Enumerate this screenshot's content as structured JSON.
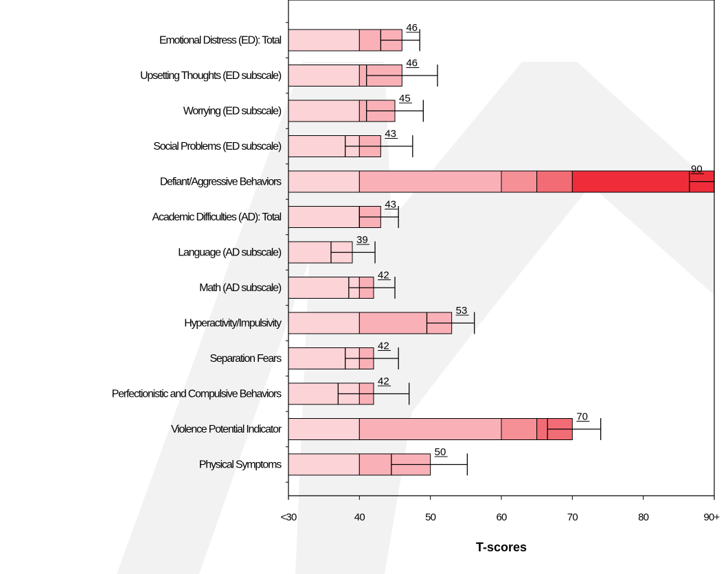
{
  "colors": {
    "bands": [
      "#fcd3d7",
      "#f9b1b7",
      "#f69097",
      "#f26c75",
      "#ef2d3a"
    ],
    "stroke": "#000000",
    "watermark": "#f2f2f2"
  },
  "chart_data": {
    "type": "bar",
    "orientation": "horizontal",
    "xlabel": "T-scores",
    "xlim": [
      30,
      90
    ],
    "xticks": [
      {
        "value": 30,
        "label": "<30"
      },
      {
        "value": 40,
        "label": "40"
      },
      {
        "value": 50,
        "label": "50"
      },
      {
        "value": 60,
        "label": "60"
      },
      {
        "value": 70,
        "label": "70"
      },
      {
        "value": 80,
        "label": "80"
      },
      {
        "value": 90,
        "label": "90+"
      }
    ],
    "bands": [
      30,
      40,
      60,
      65,
      70,
      90
    ],
    "categories": [
      "Emotional Distress (ED): Total",
      "Upsetting Thoughts (ED subscale)",
      "Worrying (ED subscale)",
      "Social Problems (ED subscale)",
      "Defiant/Aggressive Behaviors",
      "Academic Difficulties (AD): Total",
      "Language (AD subscale)",
      "Math (AD subscale)",
      "Hyperactivity/Impulsivity",
      "Separation Fears",
      "Perfectionistic and Compulsive Behaviors",
      "Violence Potential Indicator",
      "Physical Symptoms"
    ],
    "values": [
      46,
      46,
      45,
      43,
      90,
      43,
      39,
      42,
      53,
      42,
      42,
      70,
      50
    ],
    "value_labels": [
      "46",
      "46",
      "45",
      "43",
      "90",
      "43",
      "39",
      "42",
      "53",
      "42",
      "42",
      "70",
      "50"
    ],
    "error_low": [
      43,
      41,
      41,
      38,
      86.5,
      40,
      36,
      38.5,
      49.5,
      38,
      37,
      66.5,
      44.5
    ],
    "error_high": [
      48.5,
      51,
      49,
      47.5,
      90,
      45.5,
      42.2,
      45,
      56.2,
      45.5,
      47,
      74,
      55.2
    ],
    "watermark": "SAMPLE"
  }
}
